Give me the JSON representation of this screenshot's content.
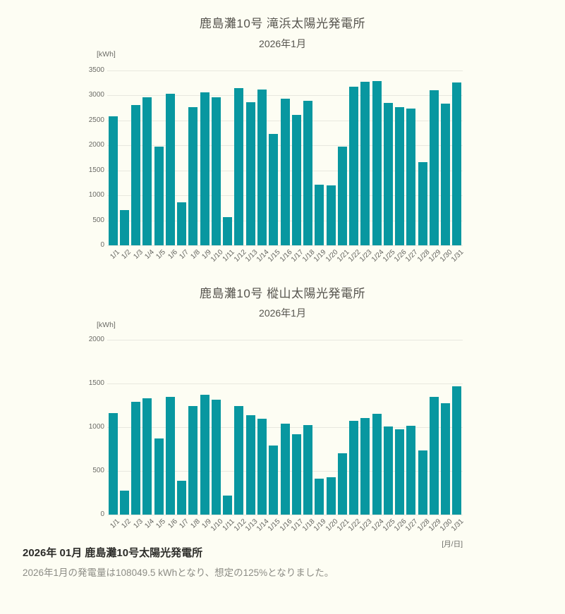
{
  "x_axis_unit_label": "[月/日]",
  "footer": {
    "title": "2026年 01月  鹿島灘10号太陽光発電所",
    "summary": "2026年1月の発電量は108049.5 kWhとなり、想定の125%となりました。"
  },
  "colors": {
    "bar": "#0897a0",
    "background": "#fdfdf3",
    "gridline": "#e8e8df"
  },
  "chart_data": [
    {
      "type": "bar",
      "title": "鹿島灘10号 滝浜太陽光発電所",
      "subtitle": "2026年1月",
      "unit_label": "[kWh]",
      "xlabel": "[月/日]",
      "ylabel": "kWh",
      "ylim": [
        0,
        3500
      ],
      "ytick_step": 500,
      "grid": true,
      "legend_position": "none",
      "categories": [
        "1/1",
        "1/2",
        "1/3",
        "1/4",
        "1/5",
        "1/6",
        "1/7",
        "1/8",
        "1/9",
        "1/10",
        "1/11",
        "1/12",
        "1/13",
        "1/14",
        "1/15",
        "1/16",
        "1/17",
        "1/18",
        "1/19",
        "1/20",
        "1/21",
        "1/22",
        "1/23",
        "1/24",
        "1/25",
        "1/26",
        "1/27",
        "1/28",
        "1/29",
        "1/30",
        "1/31"
      ],
      "values": [
        2580,
        700,
        2805,
        2970,
        1980,
        3035,
        860,
        2760,
        3065,
        2965,
        570,
        3150,
        2860,
        3120,
        2225,
        2935,
        2610,
        2900,
        1215,
        1195,
        1970,
        3180,
        3275,
        3285,
        2855,
        2765,
        2740,
        1660,
        3100,
        2840,
        3260
      ]
    },
    {
      "type": "bar",
      "title": "鹿島灘10号 樅山太陽光発電所",
      "subtitle": "2026年1月",
      "unit_label": "[kWh]",
      "xlabel": "[月/日]",
      "ylabel": "kWh",
      "ylim": [
        0,
        2000
      ],
      "ytick_step": 500,
      "grid": true,
      "legend_position": "none",
      "categories": [
        "1/1",
        "1/2",
        "1/3",
        "1/4",
        "1/5",
        "1/6",
        "1/7",
        "1/8",
        "1/9",
        "1/10",
        "1/11",
        "1/12",
        "1/13",
        "1/14",
        "1/15",
        "1/16",
        "1/17",
        "1/18",
        "1/19",
        "1/20",
        "1/21",
        "1/22",
        "1/23",
        "1/24",
        "1/25",
        "1/26",
        "1/27",
        "1/28",
        "1/29",
        "1/30",
        "1/31"
      ],
      "values": [
        1160,
        275,
        1290,
        1330,
        870,
        1350,
        390,
        1240,
        1370,
        1315,
        220,
        1240,
        1140,
        1095,
        790,
        1040,
        920,
        1025,
        415,
        425,
        705,
        1075,
        1105,
        1155,
        1010,
        975,
        1015,
        730,
        1345,
        1275,
        1465
      ]
    }
  ]
}
